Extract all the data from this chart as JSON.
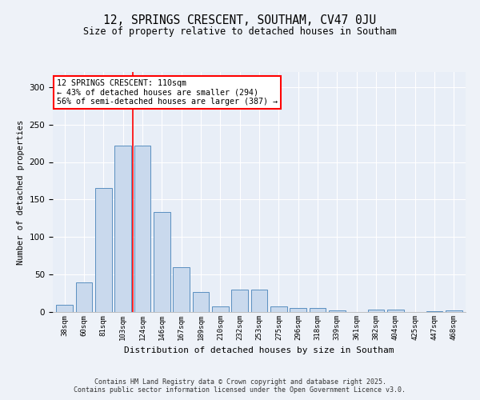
{
  "title": "12, SPRINGS CRESCENT, SOUTHAM, CV47 0JU",
  "subtitle": "Size of property relative to detached houses in Southam",
  "xlabel": "Distribution of detached houses by size in Southam",
  "ylabel": "Number of detached properties",
  "bar_color": "#c9d9ed",
  "bar_edge_color": "#5a8fc0",
  "background_color": "#e8eef7",
  "fig_background": "#eef2f8",
  "categories": [
    "38sqm",
    "60sqm",
    "81sqm",
    "103sqm",
    "124sqm",
    "146sqm",
    "167sqm",
    "189sqm",
    "210sqm",
    "232sqm",
    "253sqm",
    "275sqm",
    "296sqm",
    "318sqm",
    "339sqm",
    "361sqm",
    "382sqm",
    "404sqm",
    "425sqm",
    "447sqm",
    "468sqm"
  ],
  "values": [
    10,
    40,
    165,
    222,
    222,
    133,
    60,
    27,
    8,
    30,
    30,
    7,
    5,
    5,
    2,
    0,
    3,
    3,
    0,
    1,
    2
  ],
  "annotation_text": "12 SPRINGS CRESCENT: 110sqm\n← 43% of detached houses are smaller (294)\n56% of semi-detached houses are larger (387) →",
  "redline_x": 3.5,
  "ylim": [
    0,
    320
  ],
  "yticks": [
    0,
    50,
    100,
    150,
    200,
    250,
    300
  ],
  "footnote": "Contains HM Land Registry data © Crown copyright and database right 2025.\nContains public sector information licensed under the Open Government Licence v3.0."
}
